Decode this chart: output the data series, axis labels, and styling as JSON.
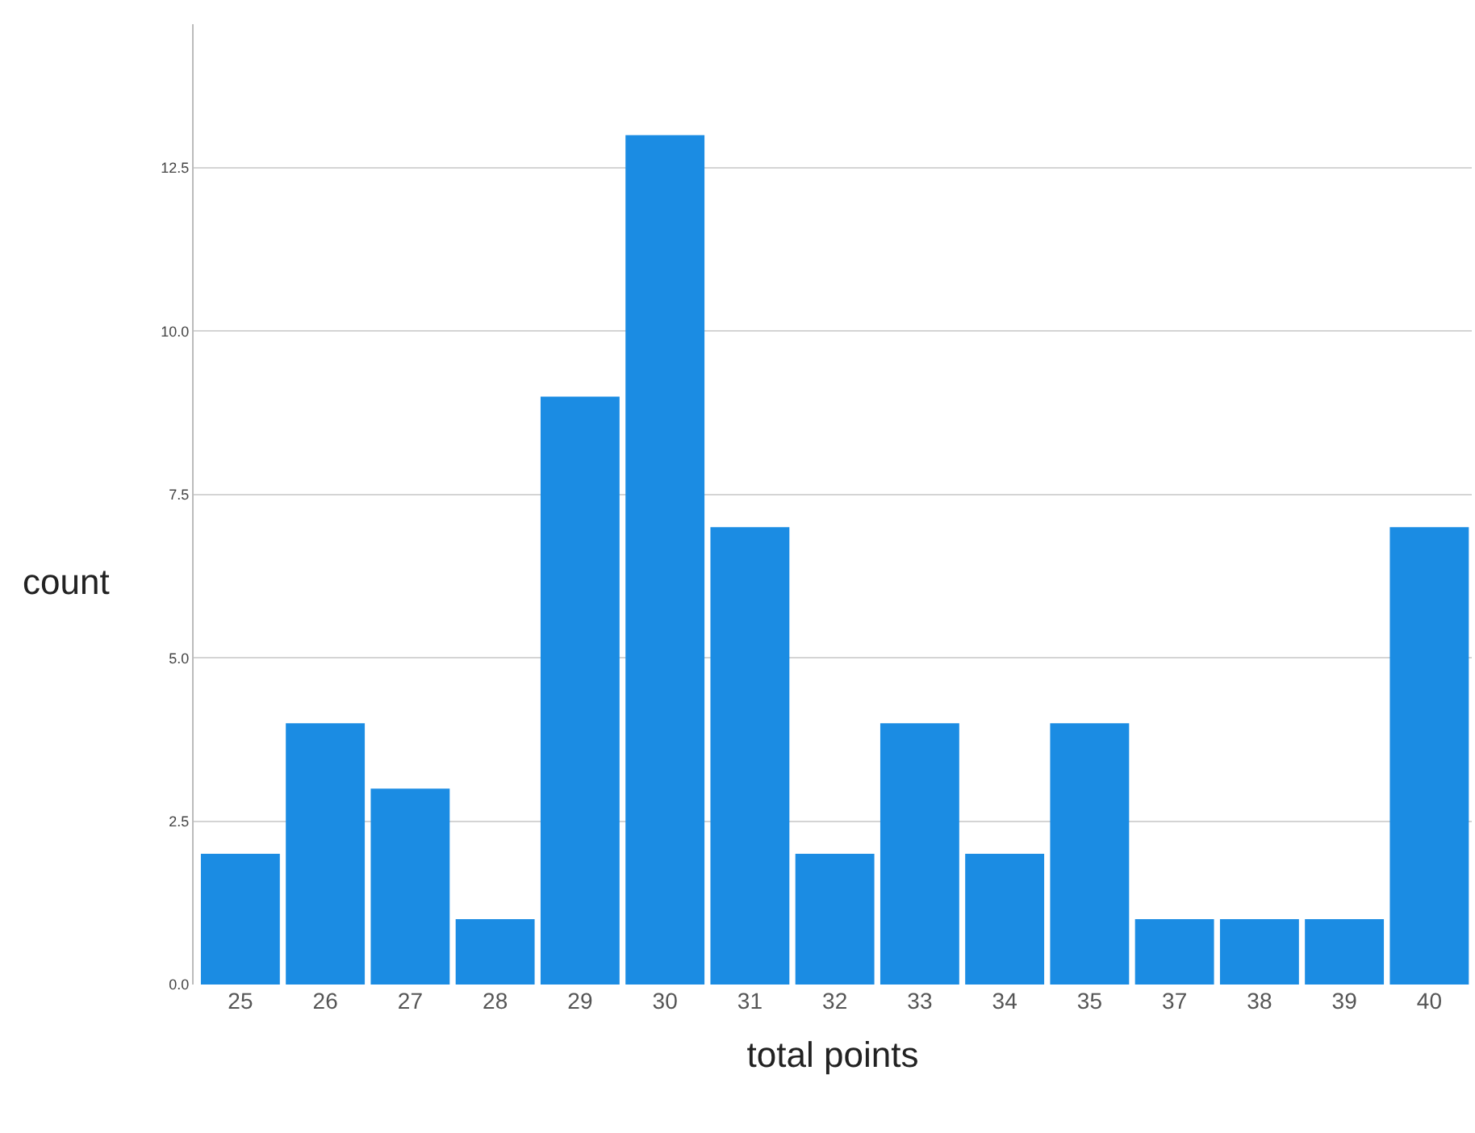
{
  "chart_data": {
    "type": "bar",
    "xlabel": "total points",
    "ylabel": "count",
    "categories": [
      "25",
      "26",
      "27",
      "28",
      "29",
      "30",
      "31",
      "32",
      "33",
      "34",
      "35",
      "37",
      "38",
      "39",
      "40"
    ],
    "values": [
      2,
      4,
      3,
      1,
      9,
      13,
      7,
      2,
      4,
      2,
      4,
      1,
      1,
      1,
      7
    ],
    "color": "#1b8ce3",
    "ylim": [
      0,
      14.7
    ],
    "yticks": [
      {
        "value": 0,
        "label": "0.0"
      },
      {
        "value": 2.5,
        "label": "2.5"
      },
      {
        "value": 5,
        "label": "5.0"
      },
      {
        "value": 7.5,
        "label": "7.5"
      },
      {
        "value": 10,
        "label": "10.0"
      },
      {
        "value": 12.5,
        "label": "12.5"
      }
    ],
    "grid": "y"
  }
}
